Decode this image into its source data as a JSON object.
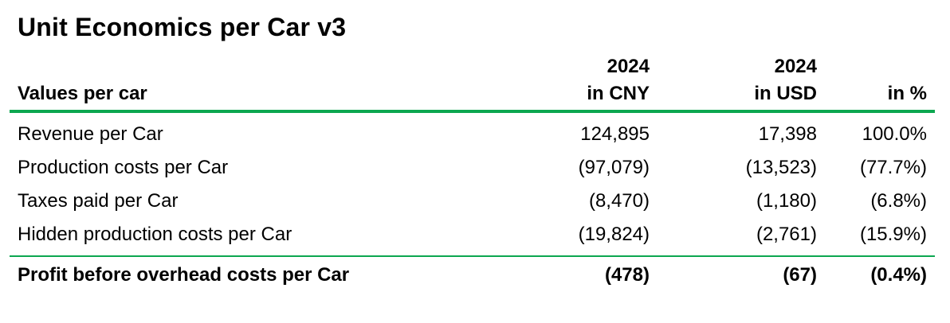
{
  "title": "Unit Economics per Car v3",
  "colors": {
    "accent_green": "#0CA750",
    "text": "#000000",
    "background": "#FFFFFF"
  },
  "table": {
    "year_headers": [
      "2024",
      "2024"
    ],
    "columns": [
      "Values per car",
      "in CNY",
      "in USD",
      "in %"
    ],
    "rows": [
      {
        "label": "Revenue per Car",
        "cny": "124,895",
        "usd": "17,398",
        "pct": "100.0%"
      },
      {
        "label": "Production costs per Car",
        "cny": "(97,079)",
        "usd": "(13,523)",
        "pct": "(77.7%)"
      },
      {
        "label": "Taxes paid per Car",
        "cny": "(8,470)",
        "usd": "(1,180)",
        "pct": "(6.8%)"
      },
      {
        "label": "Hidden production costs per Car",
        "cny": "(19,824)",
        "usd": "(2,761)",
        "pct": "(15.9%)"
      }
    ],
    "total_row": {
      "label": "Profit before overhead costs per Car",
      "cny": "(478)",
      "usd": "(67)",
      "pct": "(0.4%)"
    }
  }
}
